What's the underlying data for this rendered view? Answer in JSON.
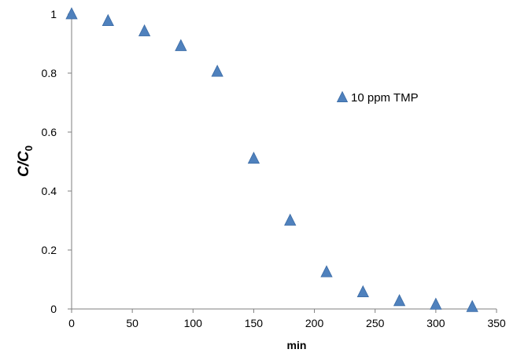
{
  "chart_data": {
    "type": "scatter",
    "title": "",
    "xlabel": "min",
    "ylabel": {
      "main": "C/C",
      "subscript": "0"
    },
    "xlim": [
      0,
      350
    ],
    "ylim": [
      0,
      1
    ],
    "x_ticks": [
      0,
      50,
      100,
      150,
      200,
      250,
      300,
      350
    ],
    "y_ticks": [
      0,
      0.2,
      0.4,
      0.6,
      0.8,
      1
    ],
    "y_tick_labels": [
      "0",
      "0.2",
      "0.4",
      "0.6",
      "0.8",
      "1"
    ],
    "grid": false,
    "legend_position": "upper-right-inside",
    "marker": "triangle",
    "series": [
      {
        "name": "10 ppm TMP",
        "color": "#4F81BD",
        "x": [
          0,
          30,
          60,
          90,
          120,
          150,
          180,
          210,
          240,
          270,
          300,
          330
        ],
        "y": [
          1.0,
          0.977,
          0.942,
          0.892,
          0.805,
          0.51,
          0.3,
          0.125,
          0.057,
          0.027,
          0.015,
          0.007
        ]
      }
    ]
  }
}
